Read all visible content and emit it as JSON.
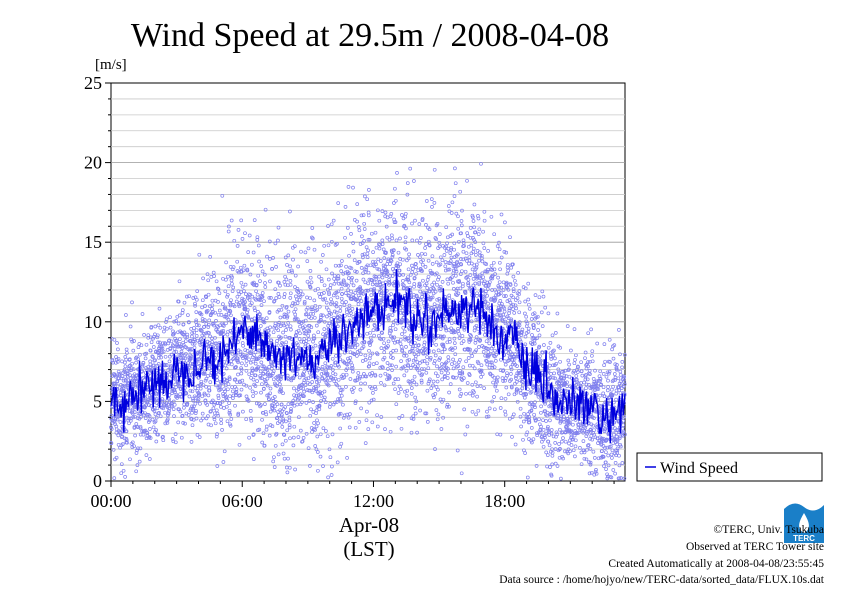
{
  "chart_data": {
    "type": "scatter",
    "title": "Wind Speed at 29.5m / 2008-04-08",
    "ylabel": "[m/s]",
    "xlabel_date": "Apr-08",
    "xlabel_zone": "(LST)",
    "ylim": [
      0,
      25
    ],
    "yticks": [
      0,
      5,
      10,
      15,
      20,
      25
    ],
    "xlim_hours": [
      0,
      23.5
    ],
    "xticks": [
      {
        "hour": 0,
        "label": "00:00"
      },
      {
        "hour": 6,
        "label": "06:00"
      },
      {
        "hour": 12,
        "label": "12:00"
      },
      {
        "hour": 18,
        "label": "18:00"
      }
    ],
    "grid": true,
    "legend_placement": "right-bottom",
    "series": [
      {
        "name": "Wind Speed",
        "color": "#0000dd",
        "point_color": "#8080ee",
        "mean_profile_hour": [
          0,
          0.5,
          1,
          1.5,
          2,
          2.5,
          3,
          3.5,
          4,
          4.5,
          5,
          5.5,
          6,
          6.5,
          7,
          7.5,
          8,
          8.5,
          9,
          9.5,
          10,
          10.5,
          11,
          11.5,
          12,
          12.5,
          13,
          13.5,
          14,
          14.5,
          15,
          15.5,
          16,
          16.5,
          17,
          17.5,
          18,
          18.5,
          19,
          19.5,
          20,
          20.5,
          21,
          21.5,
          22,
          22.5,
          23,
          23.5
        ],
        "mean_profile_ms": [
          5.2,
          4.8,
          5.5,
          5.8,
          6.0,
          6.5,
          6.8,
          7.2,
          7.5,
          7.8,
          7.6,
          8.5,
          9.5,
          9.8,
          8.5,
          8.0,
          7.5,
          8.0,
          7.8,
          7.5,
          8.5,
          9.0,
          10.0,
          10.5,
          10.5,
          11.0,
          11.5,
          11.0,
          10.0,
          10.5,
          10.0,
          11.0,
          10.5,
          11.5,
          10.5,
          9.5,
          9.0,
          8.5,
          7.0,
          6.5,
          5.5,
          5.0,
          4.8,
          4.7,
          4.5,
          4.0,
          3.8,
          4.2
        ],
        "spread_ms": [
          1.8,
          1.8,
          1.8,
          1.8,
          1.9,
          1.9,
          2.0,
          2.1,
          2.2,
          2.4,
          2.6,
          2.8,
          3.0,
          3.0,
          3.0,
          3.0,
          2.9,
          2.9,
          2.9,
          3.0,
          3.0,
          3.1,
          3.2,
          3.2,
          3.2,
          3.2,
          3.2,
          3.2,
          3.2,
          3.2,
          3.2,
          3.3,
          3.3,
          3.3,
          3.0,
          2.8,
          2.6,
          2.4,
          2.2,
          2.1,
          2.0,
          1.9,
          1.9,
          1.9,
          1.9,
          1.9,
          1.9,
          1.9
        ]
      }
    ]
  },
  "credits": {
    "copyright": "©TERC, Univ. Tsukuba",
    "observed": "Observed at TERC Tower site",
    "created": "Created Automatically at 2008-04-08/23:55:45",
    "source": "Data source : /home/hojyo/new/TERC-data/sorted_data/FLUX.10s.dat"
  },
  "logo": {
    "text": "TERC",
    "color": "#1a7fc8"
  }
}
